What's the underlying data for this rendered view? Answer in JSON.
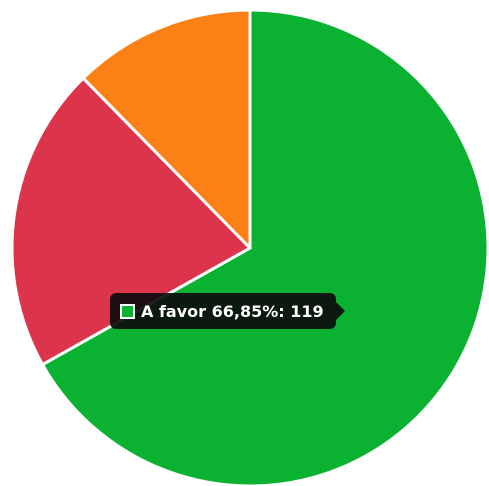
{
  "chart_data": {
    "type": "pie",
    "categories": [
      "A favor",
      "",
      ""
    ],
    "values": [
      119,
      37,
      22
    ],
    "percent_labels": [
      "66,85%",
      "",
      ""
    ],
    "colors": [
      "#0bb232",
      "#dc344b",
      "#fb8117"
    ],
    "title": "",
    "xlabel": "",
    "ylabel": ""
  },
  "tooltip": {
    "label": "A favor 66,85%: 119",
    "swatch_color": "#0bb232"
  }
}
